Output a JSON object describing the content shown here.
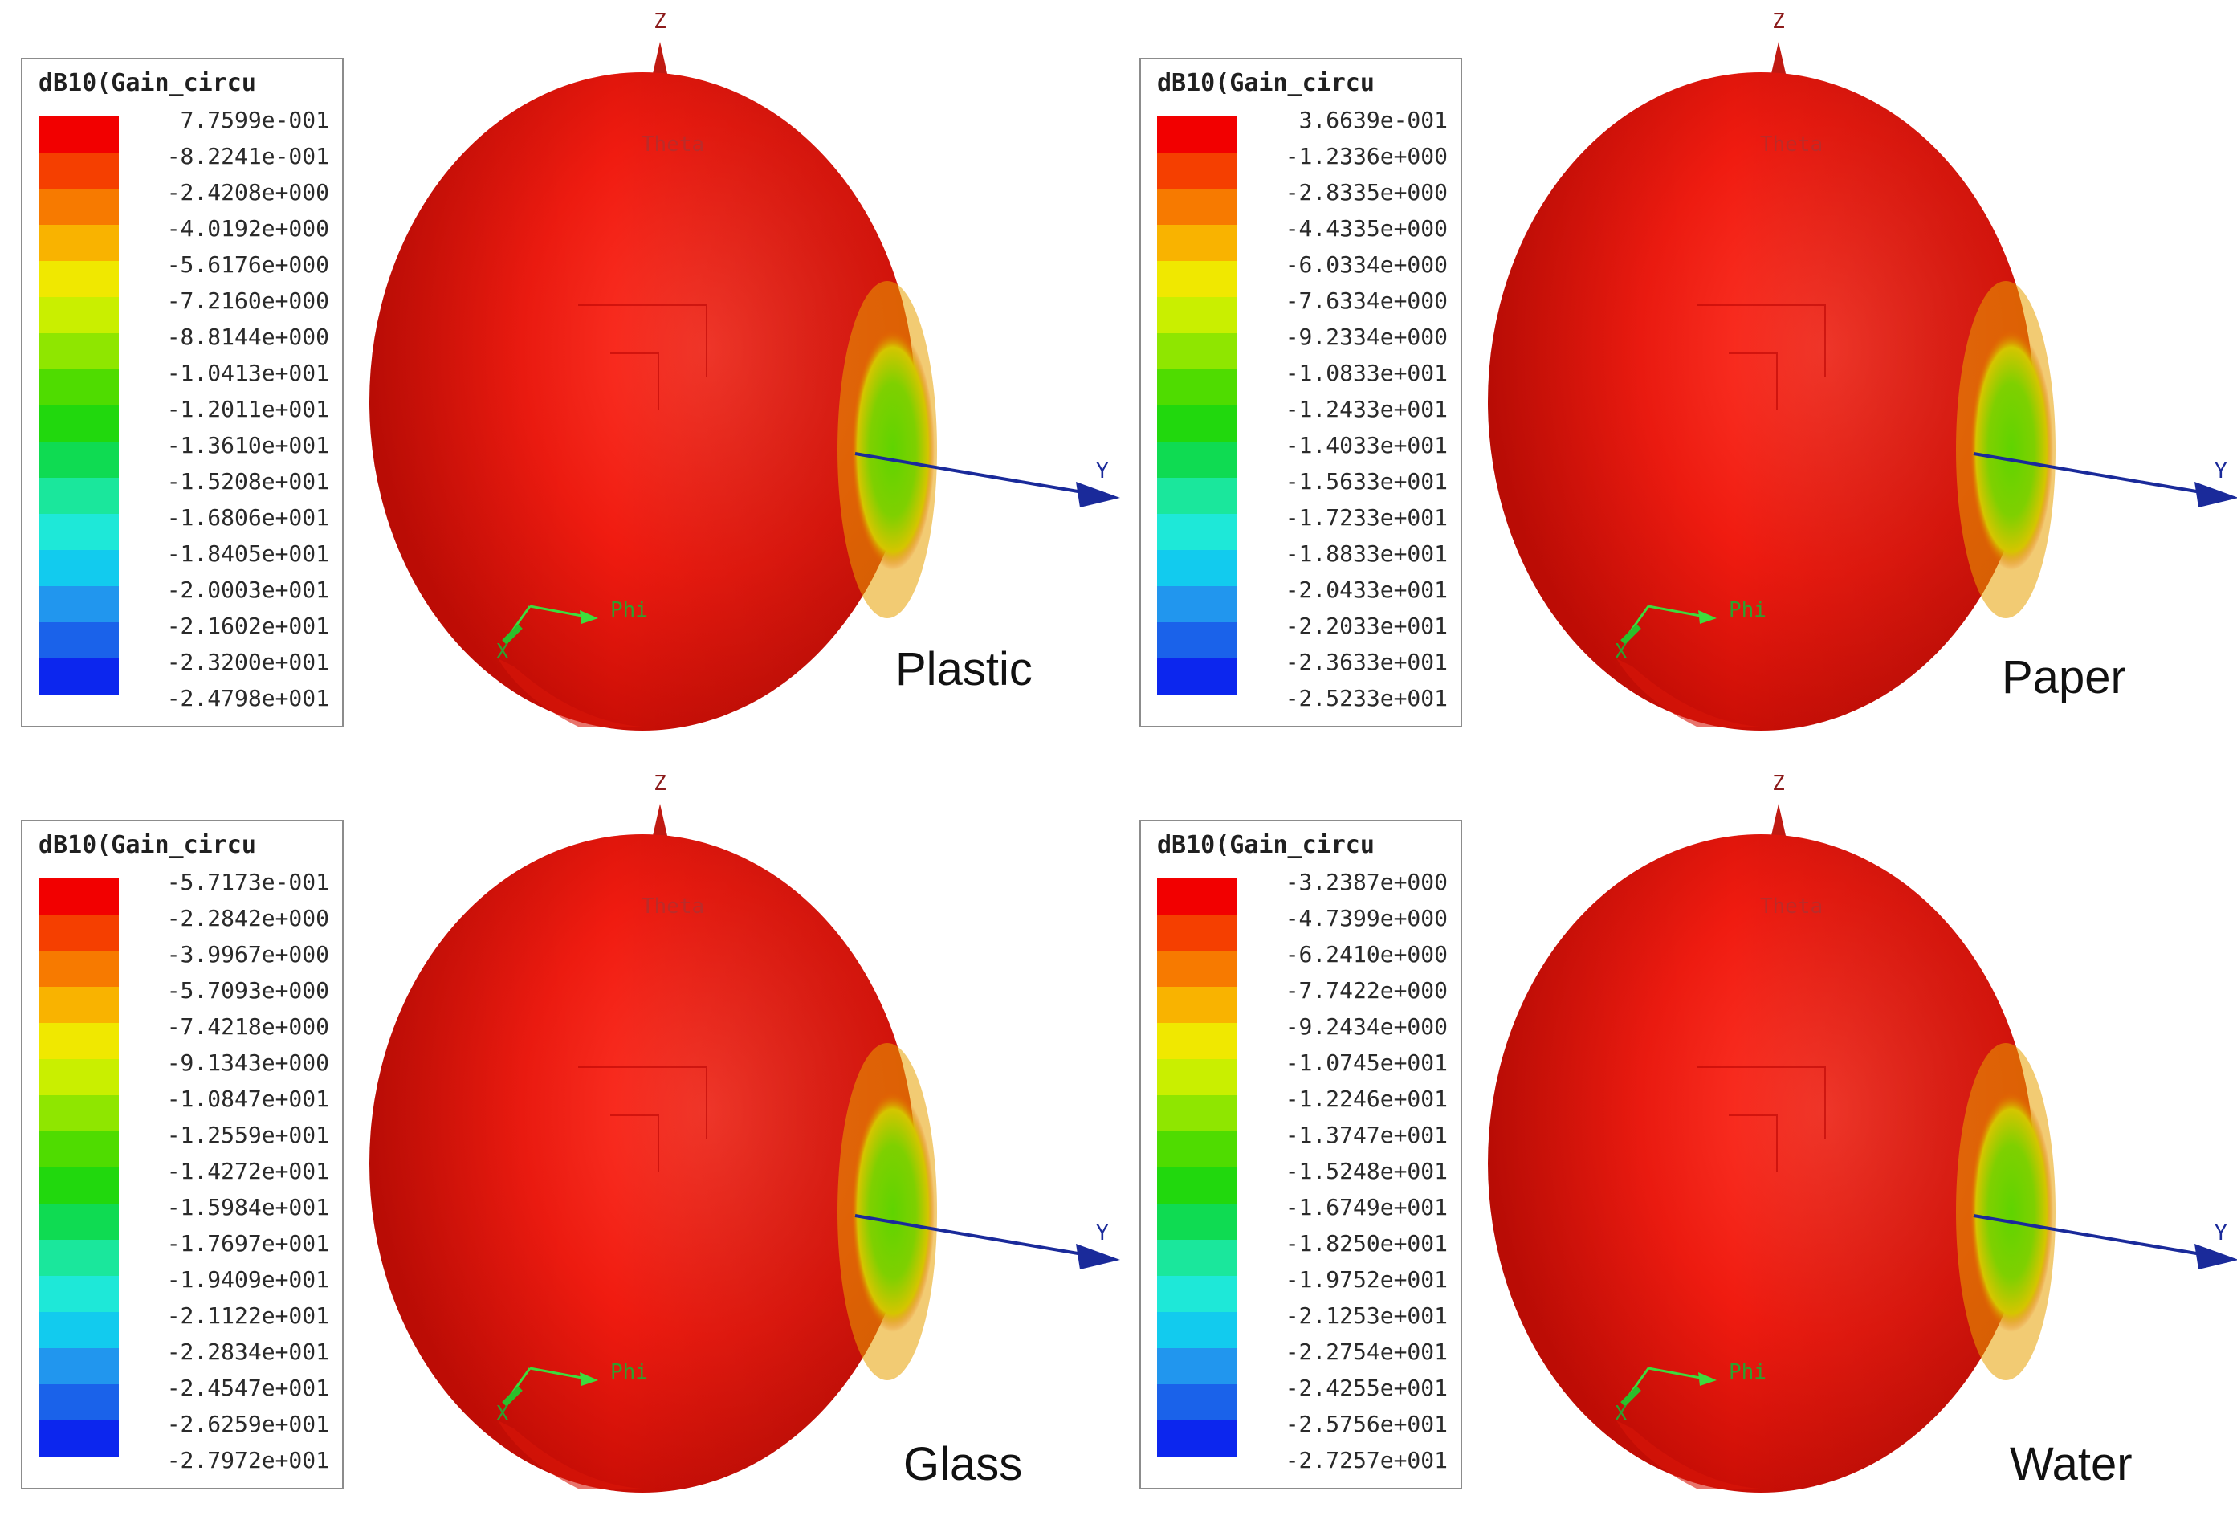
{
  "legend_colors": [
    "#f20000",
    "#f53f00",
    "#f77a00",
    "#f9b300",
    "#f0e800",
    "#c9ef00",
    "#8fe600",
    "#4fdc00",
    "#21d80d",
    "#0fdb52",
    "#1ae79c",
    "#1ee8d8",
    "#12cbee",
    "#2196ee",
    "#1a62ea",
    "#0c26ee"
  ],
  "axis_labels": {
    "z": "Z",
    "y": "Y",
    "x": "X",
    "theta": "Theta",
    "phi": "Phi"
  },
  "panels": [
    {
      "material": "Plastic",
      "legend_title": "dB10(Gain_circu",
      "values": [
        "7.7599e-001",
        "-8.2241e-001",
        "-2.4208e+000",
        "-4.0192e+000",
        "-5.6176e+000",
        "-7.2160e+000",
        "-8.8144e+000",
        "-1.0413e+001",
        "-1.2011e+001",
        "-1.3610e+001",
        "-1.5208e+001",
        "-1.6806e+001",
        "-1.8405e+001",
        "-2.0003e+001",
        "-2.1602e+001",
        "-2.3200e+001",
        "-2.4798e+001"
      ]
    },
    {
      "material": "Paper",
      "legend_title": "dB10(Gain_circu",
      "values": [
        "3.6639e-001",
        "-1.2336e+000",
        "-2.8335e+000",
        "-4.4335e+000",
        "-6.0334e+000",
        "-7.6334e+000",
        "-9.2334e+000",
        "-1.0833e+001",
        "-1.2433e+001",
        "-1.4033e+001",
        "-1.5633e+001",
        "-1.7233e+001",
        "-1.8833e+001",
        "-2.0433e+001",
        "-2.2033e+001",
        "-2.3633e+001",
        "-2.5233e+001"
      ]
    },
    {
      "material": "Glass",
      "legend_title": "dB10(Gain_circu",
      "values": [
        "-5.7173e-001",
        "-2.2842e+000",
        "-3.9967e+000",
        "-5.7093e+000",
        "-7.4218e+000",
        "-9.1343e+000",
        "-1.0847e+001",
        "-1.2559e+001",
        "-1.4272e+001",
        "-1.5984e+001",
        "-1.7697e+001",
        "-1.9409e+001",
        "-2.1122e+001",
        "-2.2834e+001",
        "-2.4547e+001",
        "-2.6259e+001",
        "-2.7972e+001"
      ]
    },
    {
      "material": "Water",
      "legend_title": "dB10(Gain_circu",
      "values": [
        "-3.2387e+000",
        "-4.7399e+000",
        "-6.2410e+000",
        "-7.7422e+000",
        "-9.2434e+000",
        "-1.0745e+001",
        "-1.2246e+001",
        "-1.3747e+001",
        "-1.5248e+001",
        "-1.6749e+001",
        "-1.8250e+001",
        "-1.9752e+001",
        "-2.1253e+001",
        "-2.2754e+001",
        "-2.4255e+001",
        "-2.5756e+001",
        "-2.7257e+001"
      ]
    }
  ]
}
